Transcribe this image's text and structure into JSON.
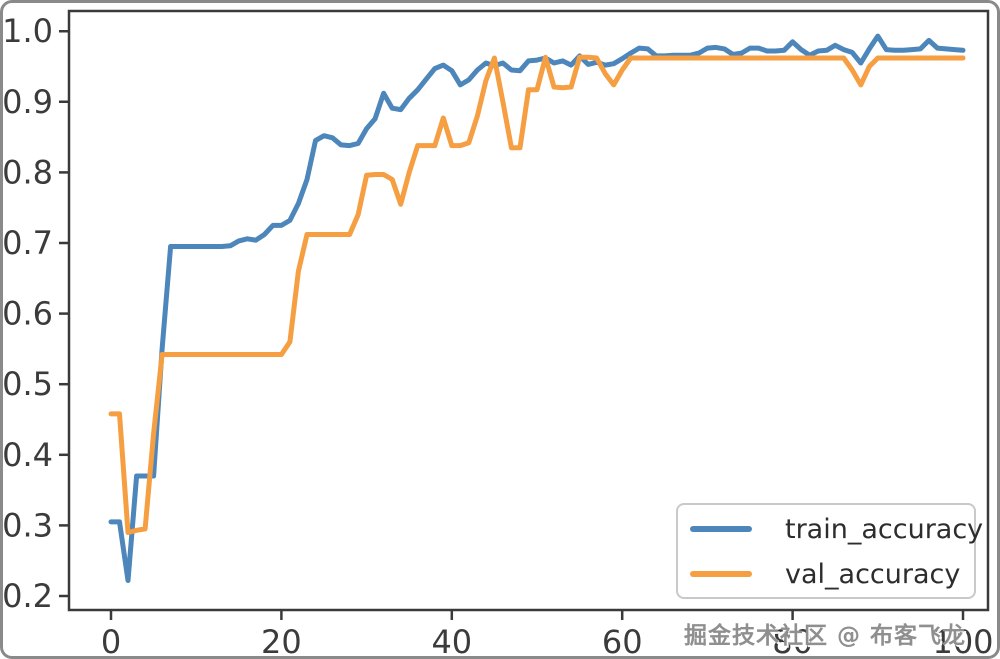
{
  "watermark": {
    "text": "掘金技术社区 @ 布客飞龙"
  },
  "legend": {
    "items": [
      {
        "label": "train_accuracy",
        "color": "#4d86bb"
      },
      {
        "label": "val_accuracy",
        "color": "#f59e42"
      }
    ]
  },
  "chart_data": {
    "type": "line",
    "title": "",
    "xlabel": "",
    "ylabel": "",
    "grid": false,
    "legend_position": "lower right",
    "x_range": [
      0,
      100
    ],
    "x_ticks": [
      0,
      20,
      40,
      60,
      80,
      100
    ],
    "y_ticks": [
      0.2,
      0.3,
      0.4,
      0.5,
      0.6,
      0.7,
      0.8,
      0.9,
      1.0
    ],
    "xlim": [
      -4.9,
      102.9
    ],
    "ylim": [
      0.18,
      1.03
    ],
    "series": [
      {
        "name": "train_accuracy",
        "color": "#4d86bb",
        "values": [
          0.305,
          0.305,
          0.222,
          0.37,
          0.37,
          0.37,
          0.55,
          0.695,
          0.695,
          0.695,
          0.695,
          0.695,
          0.695,
          0.695,
          0.696,
          0.703,
          0.706,
          0.704,
          0.712,
          0.725,
          0.725,
          0.732,
          0.756,
          0.79,
          0.845,
          0.852,
          0.849,
          0.839,
          0.838,
          0.841,
          0.862,
          0.876,
          0.912,
          0.891,
          0.889,
          0.905,
          0.917,
          0.932,
          0.947,
          0.952,
          0.944,
          0.924,
          0.931,
          0.945,
          0.955,
          0.951,
          0.955,
          0.945,
          0.944,
          0.958,
          0.959,
          0.962,
          0.955,
          0.958,
          0.952,
          0.965,
          0.953,
          0.956,
          0.952,
          0.954,
          0.961,
          0.969,
          0.976,
          0.975,
          0.965,
          0.965,
          0.966,
          0.966,
          0.966,
          0.969,
          0.976,
          0.977,
          0.975,
          0.967,
          0.969,
          0.976,
          0.976,
          0.972,
          0.972,
          0.973,
          0.985,
          0.974,
          0.966,
          0.972,
          0.973,
          0.98,
          0.974,
          0.97,
          0.955,
          0.975,
          0.993,
          0.974,
          0.973,
          0.973,
          0.974,
          0.975,
          0.987,
          0.976,
          0.975,
          0.974,
          0.973
        ]
      },
      {
        "name": "val_accuracy",
        "color": "#f59e42",
        "values": [
          0.458,
          0.458,
          0.29,
          0.293,
          0.295,
          0.43,
          0.542,
          0.542,
          0.542,
          0.542,
          0.542,
          0.542,
          0.542,
          0.542,
          0.542,
          0.542,
          0.542,
          0.542,
          0.542,
          0.542,
          0.542,
          0.56,
          0.66,
          0.712,
          0.712,
          0.712,
          0.712,
          0.712,
          0.712,
          0.74,
          0.796,
          0.797,
          0.797,
          0.79,
          0.755,
          0.8,
          0.838,
          0.838,
          0.838,
          0.877,
          0.838,
          0.838,
          0.842,
          0.88,
          0.93,
          0.962,
          0.9,
          0.835,
          0.835,
          0.917,
          0.917,
          0.963,
          0.921,
          0.92,
          0.921,
          0.963,
          0.963,
          0.962,
          0.94,
          0.924,
          0.945,
          0.962,
          0.962,
          0.962,
          0.962,
          0.962,
          0.962,
          0.962,
          0.962,
          0.962,
          0.962,
          0.962,
          0.962,
          0.962,
          0.962,
          0.962,
          0.962,
          0.962,
          0.962,
          0.962,
          0.962,
          0.962,
          0.962,
          0.962,
          0.962,
          0.962,
          0.962,
          0.945,
          0.924,
          0.95,
          0.962,
          0.962,
          0.962,
          0.962,
          0.962,
          0.962,
          0.962,
          0.962,
          0.962,
          0.962,
          0.962
        ]
      }
    ]
  }
}
